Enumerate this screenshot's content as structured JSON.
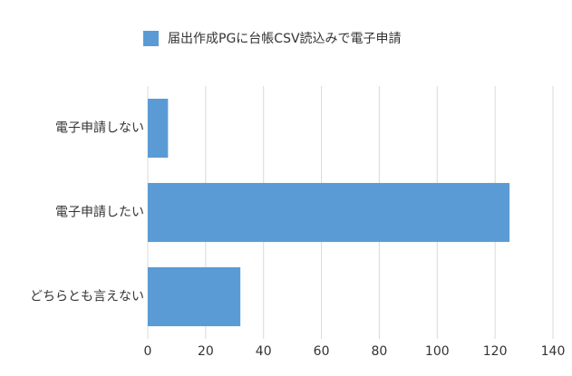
{
  "chart_data": {
    "type": "hbar",
    "legend": "届出作成PGに台帳CSV読込みで電子申請",
    "categories": [
      "電子申請しない",
      "電子申請したい",
      "どちらとも言えない"
    ],
    "values": [
      7,
      125,
      32
    ],
    "color": "#5b9bd5",
    "xlim": [
      0,
      140
    ],
    "xticks": [
      0,
      20,
      40,
      60,
      80,
      100,
      120,
      140
    ],
    "grid": true
  }
}
